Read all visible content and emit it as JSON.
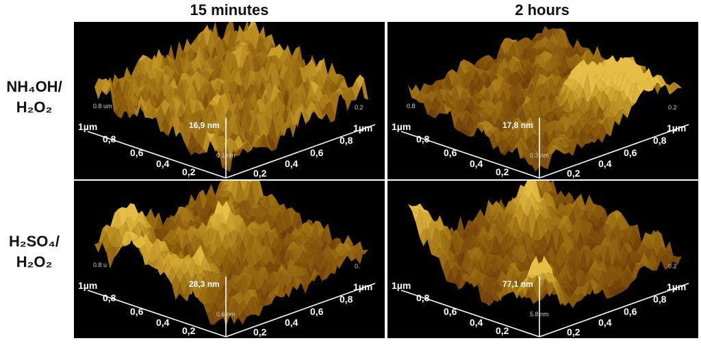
{
  "columns": [
    "15 minutes",
    "2 hours"
  ],
  "rows": [
    {
      "line1": "NH₄OH/",
      "line2": "H₂O₂"
    },
    {
      "line1": "H₂SO₄/",
      "line2": "H₂O₂"
    }
  ],
  "panels": [
    {
      "height": "16,9 nm",
      "z_top": "0.8 um",
      "z_mid": "0.1 nm",
      "z_right": "0.2",
      "axis_left": [
        "1µm",
        "0,8",
        "0,6",
        "0,4",
        "0,2"
      ],
      "axis_right": [
        "1µm",
        "0,8",
        "0,6",
        "0,4",
        "0,2"
      ]
    },
    {
      "height": "17,8 nm",
      "z_top": "0.8",
      "z_mid": "0.3 nm",
      "z_right": "0.2",
      "axis_left": [
        "1µm",
        "0,8",
        "0,6",
        "0,4",
        "0,2"
      ],
      "axis_right": [
        "1µm",
        "0,8",
        "0,6",
        "0,4",
        "0,2"
      ]
    },
    {
      "height": "28,3 nm",
      "z_top": "0.8 u",
      "z_mid": "0.6 nm",
      "z_right": "0.",
      "axis_left": [
        "1µm",
        "0,8",
        "0,6",
        "0,4",
        "0,2"
      ],
      "axis_right": [
        "1µm",
        "0,8",
        "0,6",
        "0,4",
        "0,2"
      ]
    },
    {
      "height": "77,1 nm",
      "z_top": "",
      "z_mid": "5.8 nm",
      "z_right": "0.2",
      "axis_left": [
        "1µm",
        "0,8",
        "0,6",
        "0,4",
        "0,2"
      ],
      "axis_right": [
        "1µm",
        "0,8",
        "0,6",
        "0,4",
        "0,2"
      ]
    }
  ],
  "colors": {
    "surface_peak": "#e8d07a",
    "surface_mid": "#8a7a1a",
    "surface_base": "#6a2a10",
    "background": "#000000"
  }
}
